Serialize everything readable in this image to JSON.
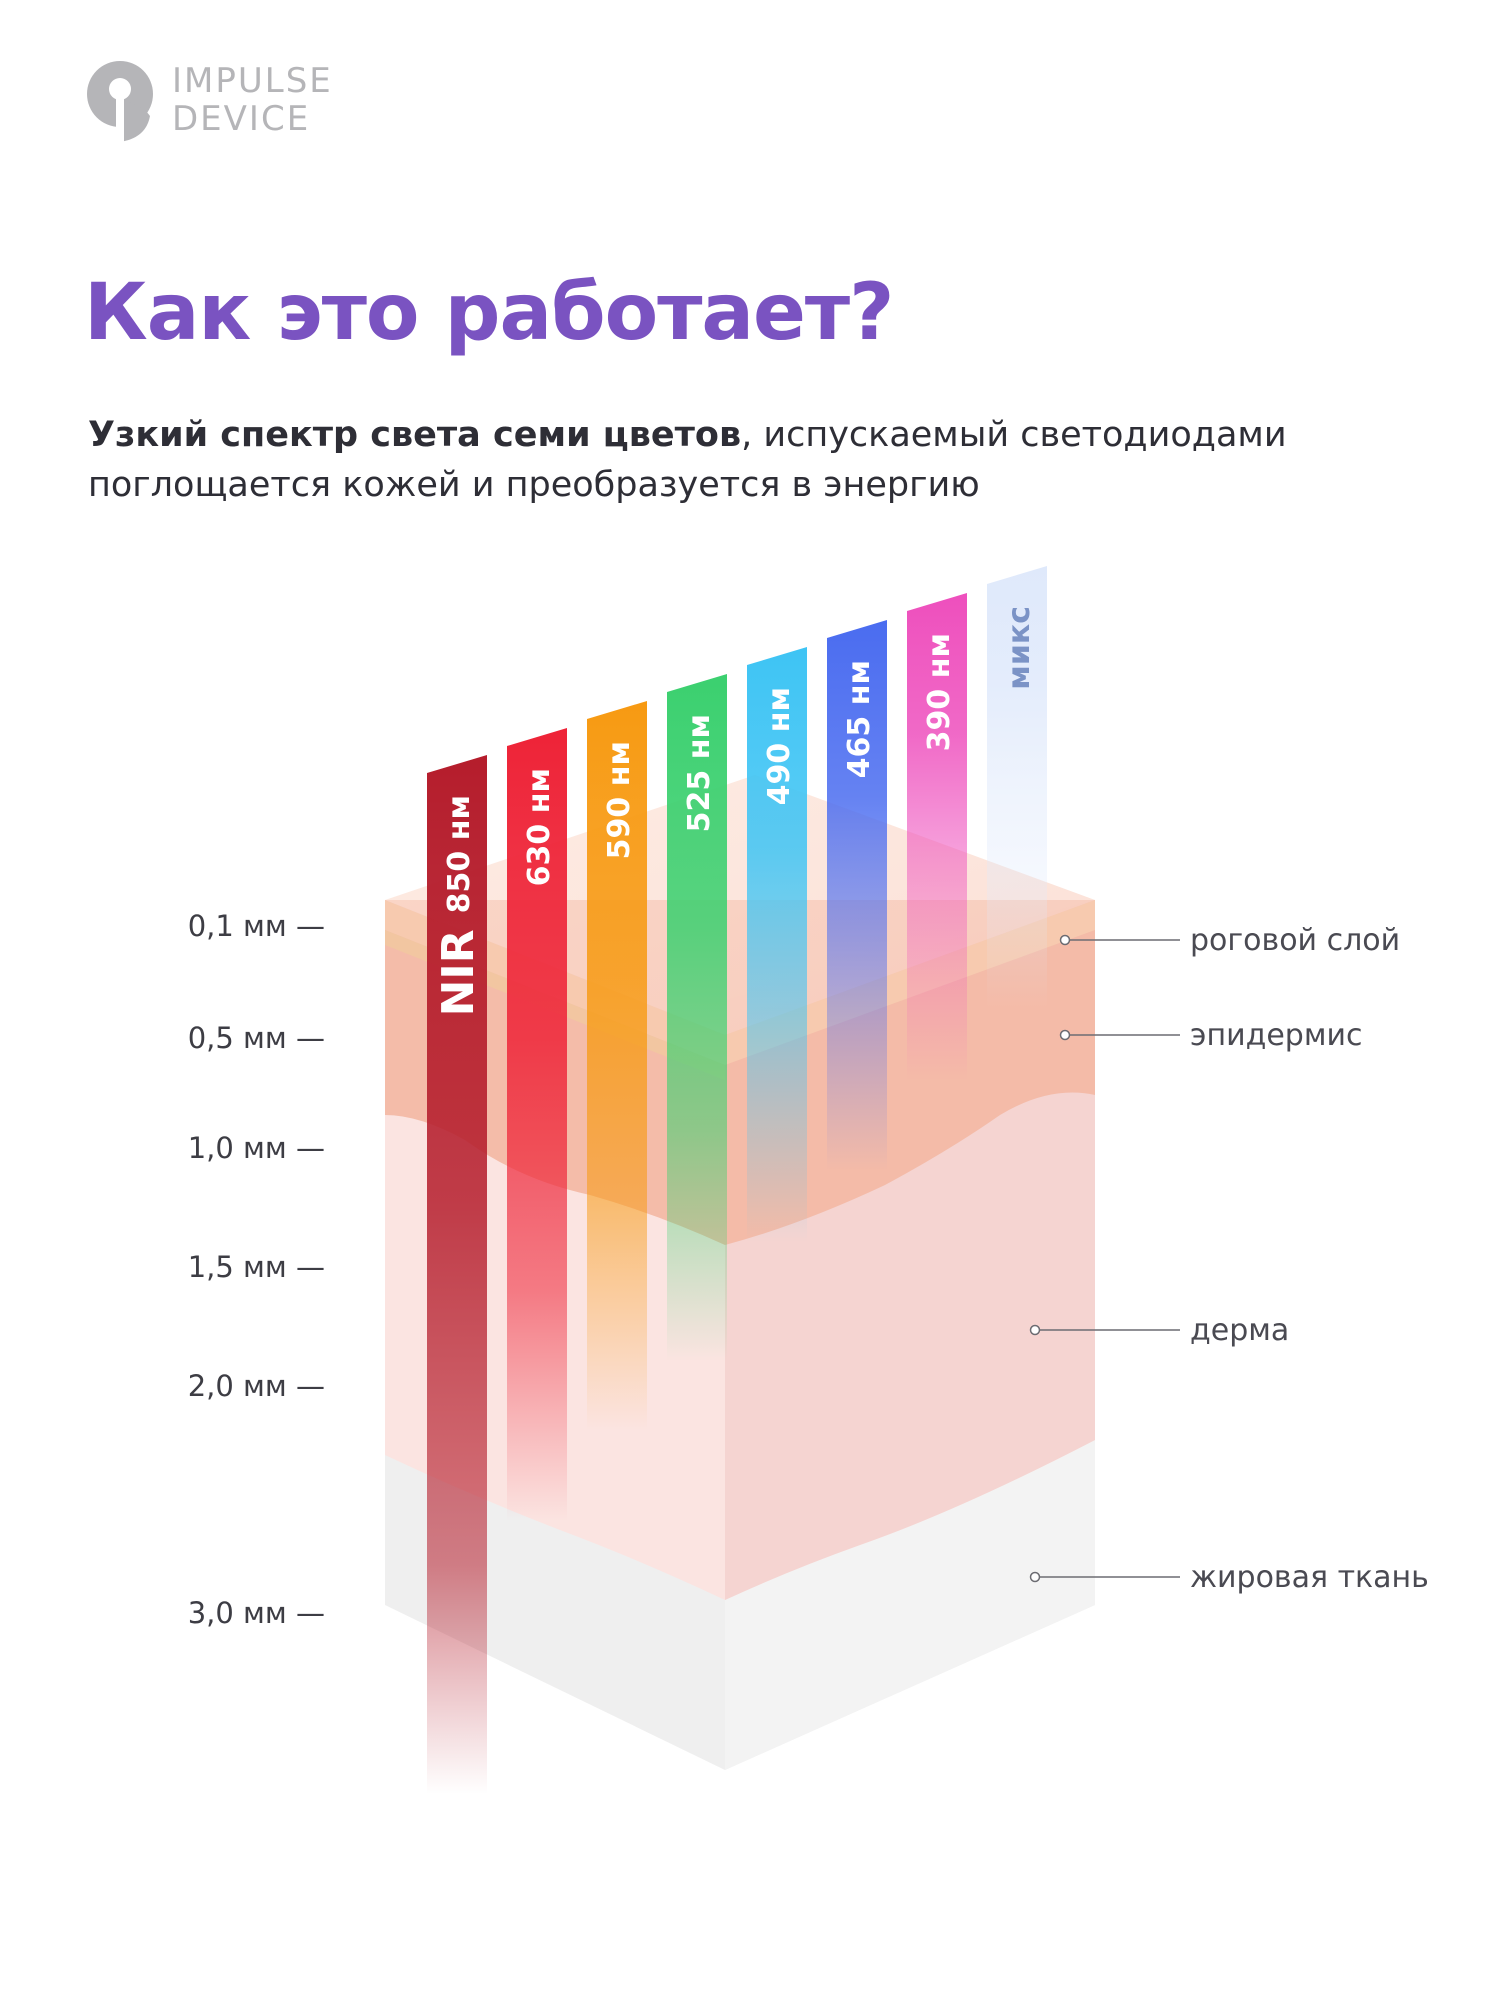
{
  "brand": {
    "line1": "IMPULSE",
    "line2": "DEVICE",
    "icon": "impulse-logo-icon",
    "color": "#b5b5b8"
  },
  "title": "Как это работает?",
  "subtitle": {
    "bold": "Узкий спектр света семи цветов",
    "rest": ", испускаемый светодиодами",
    "line2": "поглощается кожей и преобразуется в энергию"
  },
  "depth_scale": [
    {
      "label": "0,1 мм —",
      "depth_mm": 0.1
    },
    {
      "label": "0,5 мм —",
      "depth_mm": 0.5
    },
    {
      "label": "1,0 мм —",
      "depth_mm": 1.0
    },
    {
      "label": "1,5 мм —",
      "depth_mm": 1.5
    },
    {
      "label": "2,0 мм —",
      "depth_mm": 2.0
    },
    {
      "label": "3,0 мм —",
      "depth_mm": 3.0
    }
  ],
  "layers": [
    {
      "name": "роговой слой"
    },
    {
      "name": "эпидермис"
    },
    {
      "name": "дерма"
    },
    {
      "name": "жировая ткань"
    }
  ],
  "beams": [
    {
      "prefix": "NIR",
      "label": "850 нм",
      "color": "#b51d2c",
      "depth_mm": 3.8
    },
    {
      "label": "630 нм",
      "color": "#ee2337",
      "depth_mm": 2.6
    },
    {
      "label": "590 нм",
      "color": "#f79a12",
      "depth_mm": 2.2
    },
    {
      "label": "525 нм",
      "color": "#3bd06f",
      "depth_mm": 1.9
    },
    {
      "label": "490 нм",
      "color": "#3ec4f4",
      "depth_mm": 1.4
    },
    {
      "label": "465 нм",
      "color": "#4a6cf0",
      "depth_mm": 1.1
    },
    {
      "label": "390 нм",
      "color": "#ee4fbd",
      "depth_mm": 0.7
    },
    {
      "label": "микс",
      "color": "#dfe9fb",
      "text_color": "#7b93c6",
      "depth_mm": 0.4
    }
  ]
}
